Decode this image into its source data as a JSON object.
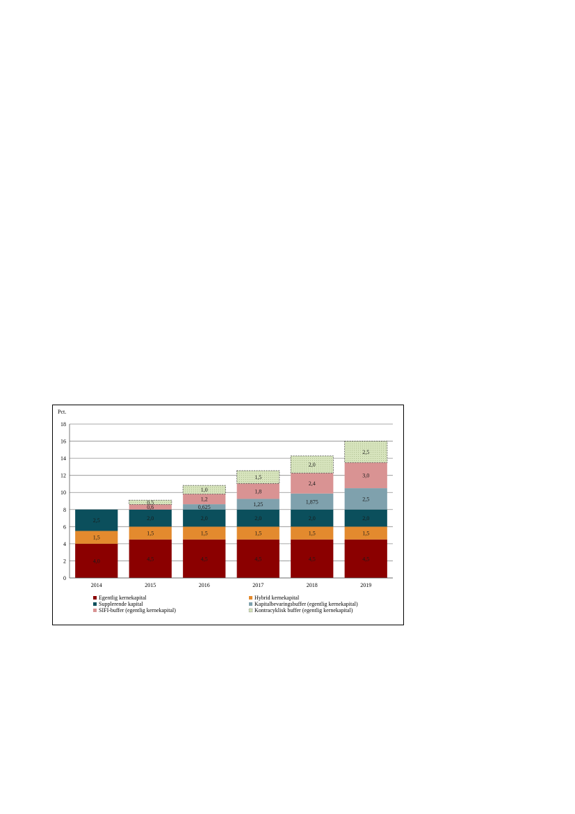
{
  "chart_data": {
    "type": "bar",
    "stacked": true,
    "ylabel": "Pct.",
    "ylim": [
      0,
      18
    ],
    "yticks": [
      "0",
      "2",
      "4",
      "6",
      "8",
      "10",
      "12",
      "14",
      "16",
      "18"
    ],
    "grid": true,
    "legend_position": "bottom",
    "categories": [
      "2014",
      "2015",
      "2016",
      "2017",
      "2018",
      "2019"
    ],
    "series": [
      {
        "name": "Egentlig kernekapital",
        "color": "#8b0000",
        "values": [
          4.0,
          4.5,
          4.5,
          4.5,
          4.5,
          4.5
        ],
        "labels": [
          "4,0",
          "4,5",
          "4,5",
          "4,5",
          "4,5",
          "4,5"
        ]
      },
      {
        "name": "Hybrid kernekapital",
        "color": "#e38a2e",
        "values": [
          1.5,
          1.5,
          1.5,
          1.5,
          1.5,
          1.5
        ],
        "labels": [
          "1,5",
          "1,5",
          "1,5",
          "1,5",
          "1,5",
          "1,5"
        ]
      },
      {
        "name": "Supplerende kapital",
        "color": "#0b4f5c",
        "values": [
          2.5,
          2.0,
          2.0,
          2.0,
          2.0,
          2.0
        ],
        "labels": [
          "2,5",
          "2,0",
          "2,0",
          "2,0",
          "2,0",
          "2,0"
        ]
      },
      {
        "name": "Kapitalbevaringsbuffer (egentlig kernekapital)",
        "color": "#7fa1ad",
        "values": [
          0,
          0,
          0.625,
          1.25,
          1.875,
          2.5
        ],
        "labels": [
          "",
          "",
          "0,625",
          "1,25",
          "1,875",
          "2,5"
        ]
      },
      {
        "name": "SIFI-buffer (egentlig kernekapital)",
        "color": "#d99393",
        "values": [
          0,
          0.6,
          1.2,
          1.8,
          2.4,
          3.0
        ],
        "labels": [
          "",
          "0,6",
          "1,2",
          "1,8",
          "2,4",
          "3,0"
        ]
      },
      {
        "name": "Kontracyklisk buffer (egentlig kernekapital)",
        "color": "#d7e4bd",
        "values": [
          0,
          0.5,
          1.0,
          1.5,
          2.0,
          2.5
        ],
        "labels": [
          "",
          "0,5",
          "1,0",
          "1,5",
          "2,0",
          "2,5"
        ],
        "dashed": true
      }
    ]
  }
}
